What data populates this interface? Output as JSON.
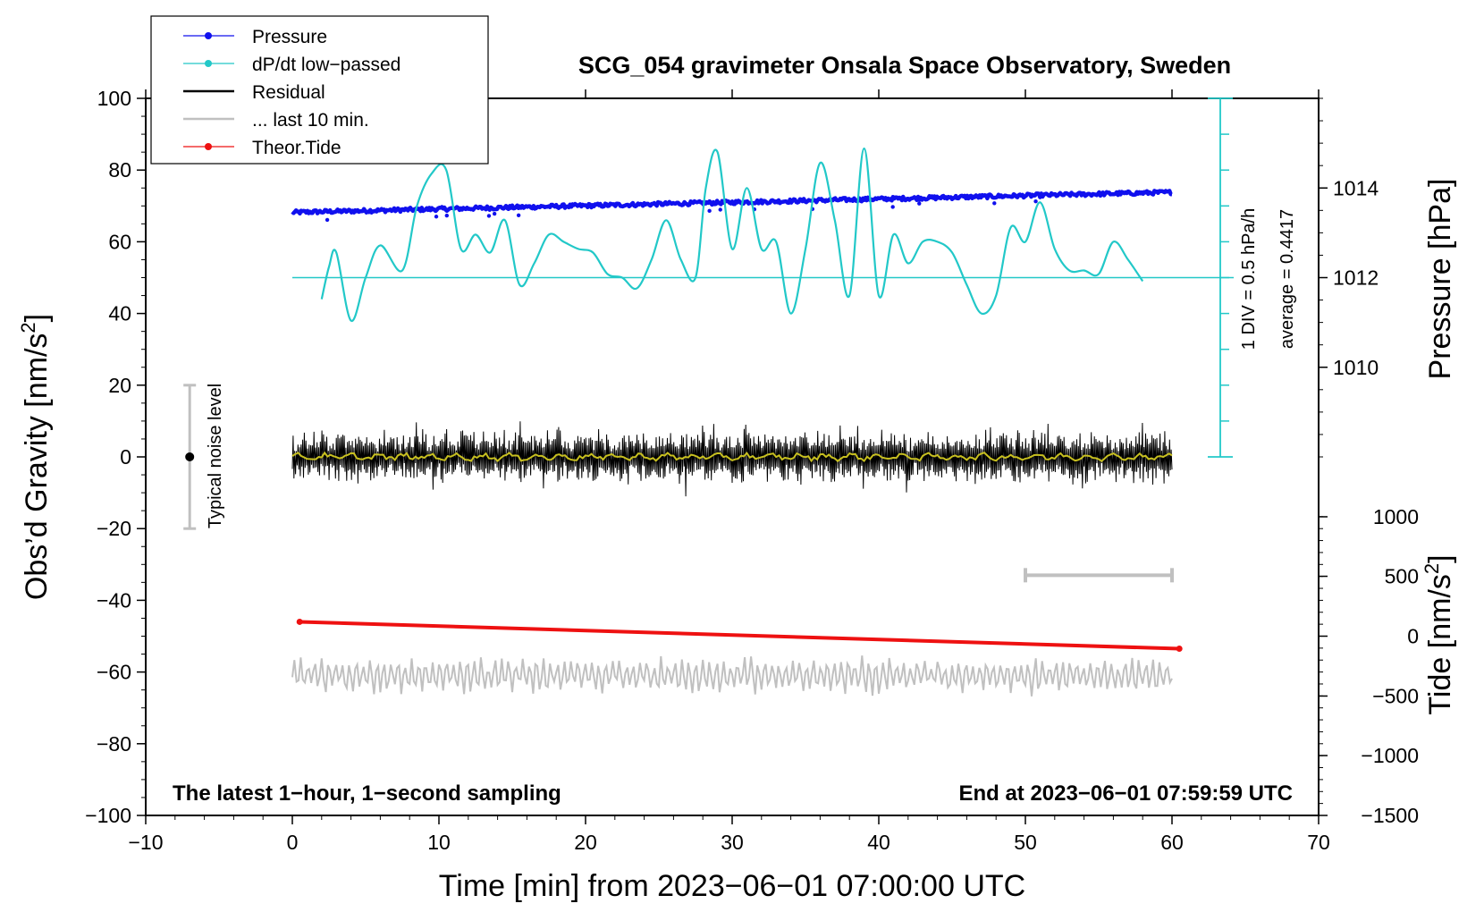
{
  "chart_data": {
    "type": "line",
    "title": "SCG_054 gravimeter Onsala Space Observatory, Sweden",
    "xlabel": "Time [min] from 2023−06−01 07:00:00 UTC",
    "ylabel": "Obs’d Gravity [nm/s",
    "ylabel_sup": "2",
    "ylabel_end": "]",
    "y2label": "Pressure [hPa]",
    "y3label": "Tide [nm/s",
    "y3label_sup": "2",
    "y3label_end": "]",
    "xlim": [
      -10,
      70
    ],
    "ylim": [
      -100,
      100
    ],
    "x_ticks": [
      -10,
      0,
      10,
      20,
      30,
      40,
      50,
      60,
      70
    ],
    "x_tick_labels": [
      "−10",
      "0",
      "10",
      "20",
      "30",
      "40",
      "50",
      "60",
      "70"
    ],
    "y_ticks": [
      100,
      80,
      60,
      40,
      20,
      0,
      -20,
      -40,
      -60,
      -80,
      -100
    ],
    "y_tick_labels": [
      "100",
      "80",
      "60",
      "40",
      "20",
      "0",
      "−20",
      "−40",
      "−60",
      "−80",
      "−100"
    ],
    "pressure_axis": {
      "ticks": [
        1014,
        1012,
        1010
      ],
      "tick_labels": [
        "1014",
        "1012",
        "1010"
      ],
      "gravity_equiv": [
        75,
        50,
        25
      ]
    },
    "tide_axis": {
      "ticks": [
        1000,
        500,
        0,
        -500,
        -1000,
        -1500
      ],
      "tick_labels": [
        "1000",
        "500",
        "0",
        "−500",
        "−1000",
        "−1500"
      ],
      "gravity_equiv": [
        -16.7,
        -33.3,
        -50,
        -66.7,
        -83.3,
        -100
      ]
    },
    "legend": [
      {
        "label": "Pressure",
        "color": "#1010ee",
        "marker": true
      },
      {
        "label": "dP/dt low−passed",
        "color": "#22c8c8",
        "marker": true
      },
      {
        "label": "Residual",
        "color": "#000000",
        "marker": false
      },
      {
        "label": "... last 10 min.",
        "color": "#c0c0c0",
        "marker": false
      },
      {
        "label": "Theor.Tide",
        "color": "#ee1111",
        "marker": true
      }
    ],
    "series": [
      {
        "name": "Pressure",
        "color": "#1010ee",
        "x": [
          0,
          60
        ],
        "y_start": 68.2,
        "y_end": 73.8
      },
      {
        "name": "dP/dt low−passed",
        "color": "#22c8c8",
        "baseline": 50,
        "x": [
          2,
          2.5,
          3,
          4,
          5,
          6,
          7.5,
          8.5,
          9.5,
          10.5,
          11.5,
          12.5,
          13.5,
          14.5,
          15.5,
          16.5,
          17.5,
          18.5,
          19.5,
          20.5,
          21.5,
          22.5,
          23.5,
          24.5,
          25.5,
          26.5,
          27.5,
          28.2,
          29,
          30,
          31,
          32,
          33,
          34,
          35,
          36,
          37,
          38,
          39,
          40,
          41,
          42,
          43,
          44,
          45,
          46,
          47,
          48,
          49,
          50,
          51,
          52,
          53,
          54,
          55,
          56,
          57,
          58
        ],
        "y": [
          44,
          53,
          57,
          38,
          50,
          59,
          52,
          70,
          79,
          80,
          58,
          62,
          57,
          66,
          48,
          54,
          62,
          60,
          58,
          57,
          51,
          50,
          47,
          55,
          66,
          55,
          50,
          75,
          85,
          58,
          75,
          58,
          60,
          40,
          58,
          82,
          66,
          45,
          86,
          45,
          62,
          54,
          60,
          60,
          57,
          48,
          40,
          45,
          64,
          60,
          71,
          58,
          52,
          52,
          51,
          60,
          55,
          49
        ]
      },
      {
        "name": "Residual",
        "color": "#000000",
        "x": [
          0,
          60
        ],
        "y_center": 0,
        "amplitude": 8
      },
      {
        "name": "Residual smoothed",
        "color": "#c8c020",
        "x": [
          0,
          60
        ],
        "y_center": 0
      },
      {
        "name": "... last 10 min.",
        "color": "#c0c0c0",
        "x": [
          0,
          60
        ],
        "y_center": -61,
        "amplitude": 5
      },
      {
        "name": "Theor.Tide",
        "color": "#ee1111",
        "x": [
          0.5,
          60.5
        ],
        "y_start": -46,
        "y_end": -53.5
      }
    ],
    "noise_bar": {
      "label": "Typical noise level",
      "x": -7,
      "y": 0,
      "low": -20,
      "high": 20
    },
    "pressure_scale": {
      "label": "1 DIV = 0.5 hPa/h",
      "average_label": "average = 0.4417"
    },
    "ten_min_bar": {
      "x_start": 50,
      "x_end": 60,
      "y": -33
    },
    "annotations": {
      "bottom_left": "The latest 1−hour, 1−second sampling",
      "bottom_right": "End at 2023−06−01 07:59:59 UTC"
    }
  }
}
